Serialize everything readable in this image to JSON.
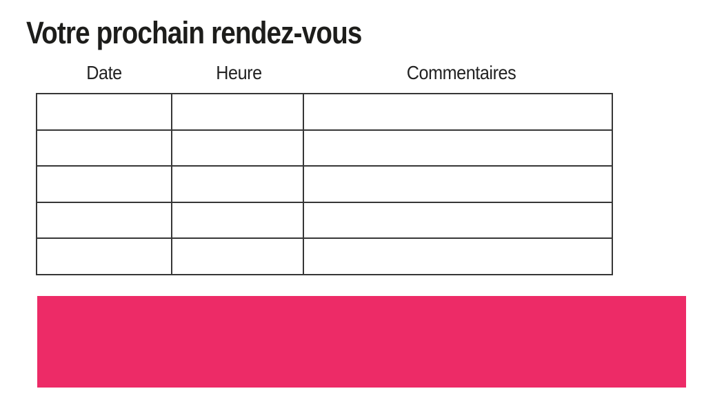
{
  "page": {
    "title": "Votre prochain rendez-vous"
  },
  "table": {
    "columns": [
      {
        "label": "Date"
      },
      {
        "label": "Heure"
      },
      {
        "label": "Commentaires"
      }
    ],
    "rows": [
      [
        "",
        "",
        ""
      ],
      [
        "",
        "",
        ""
      ],
      [
        "",
        "",
        ""
      ],
      [
        "",
        "",
        ""
      ],
      [
        "",
        "",
        ""
      ]
    ]
  },
  "colors": {
    "accent_pink": "#ED2B67",
    "table_border": "#363636",
    "text": "#1D1D1B"
  }
}
